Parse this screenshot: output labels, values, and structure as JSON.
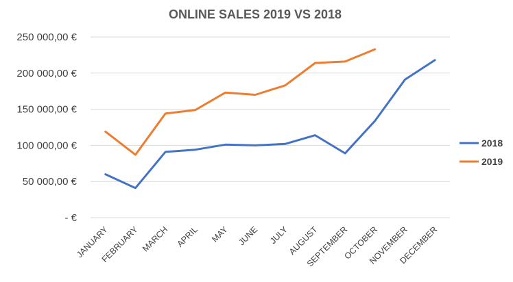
{
  "chart_data": {
    "type": "line",
    "title": "ONLINE SALES 2019 VS 2018",
    "xlabel": "",
    "ylabel": "",
    "categories": [
      "JANUARY",
      "FEBRUARY",
      "MARCH",
      "APRIL",
      "MAY",
      "JUNE",
      "JULY",
      "AUGUST",
      "SEPTEMBER",
      "OCTOBER",
      "NOVEMBER",
      "DECEMBER"
    ],
    "ylim": [
      0,
      250000
    ],
    "yticks": [
      0,
      50000,
      100000,
      150000,
      200000,
      250000
    ],
    "ytick_labels": [
      "-   €",
      "50 000,00 €",
      "100 000,00 €",
      "150 000,00 €",
      "200 000,00 €",
      "250 000,00 €"
    ],
    "grid": true,
    "legend_position": "right",
    "series": [
      {
        "name": "2018",
        "color": "#4472C4",
        "values": [
          60000,
          41000,
          91000,
          94000,
          101000,
          100000,
          102000,
          114000,
          89000,
          134000,
          191000,
          218000
        ]
      },
      {
        "name": "2019",
        "color": "#ED7D31",
        "values": [
          119000,
          87000,
          144000,
          149000,
          173000,
          170000,
          183000,
          214000,
          216000,
          233000,
          null,
          null
        ]
      }
    ]
  }
}
